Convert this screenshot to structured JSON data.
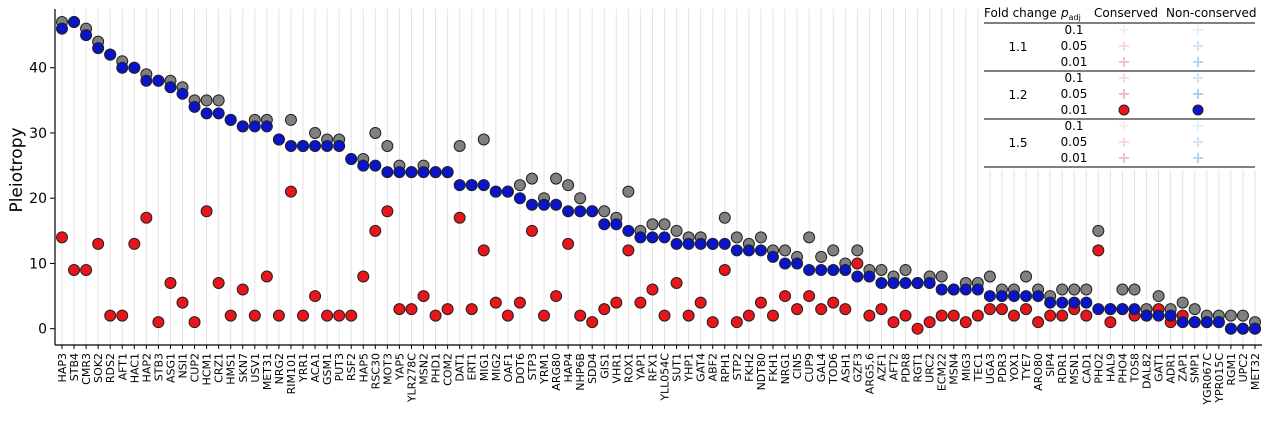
{
  "chart_data": {
    "type": "scatter",
    "y_label": "Pleiotropy",
    "ylim": [
      -2.5,
      49
    ],
    "yticks": [
      0,
      10,
      20,
      30,
      40
    ],
    "grid": true,
    "categories": [
      "HAP3",
      "STB4",
      "CMR3",
      "SOK2",
      "RDS2",
      "AFT1",
      "HAC1",
      "HAP2",
      "STB3",
      "ASG1",
      "NSI1",
      "CUP2",
      "HCM1",
      "CRZ1",
      "HMS1",
      "SKN7",
      "USV1",
      "MET31",
      "NRG2",
      "RIM101",
      "YRR1",
      "ACA1",
      "GSM1",
      "PUT3",
      "RSF2",
      "HAP5",
      "RSC30",
      "MOT3",
      "YAP5",
      "YLR278C",
      "MSN2",
      "PHD1",
      "COM2",
      "DAT1",
      "ERT1",
      "MIG1",
      "MIG2",
      "OAF1",
      "DOT6",
      "STP3",
      "YRM1",
      "ARG80",
      "HAP4",
      "NHP6B",
      "SDD4",
      "GIS1",
      "VHR1",
      "ROX1",
      "YAP1",
      "RFX1",
      "YLL054C",
      "SUT1",
      "YHP1",
      "GAT4",
      "ABF2",
      "RPH1",
      "STP2",
      "FKH2",
      "NDT80",
      "FKH1",
      "NRG1",
      "CIN5",
      "CUP9",
      "GAL4",
      "TOD6",
      "ASH1",
      "GZF3",
      "ARG5,6",
      "AZF1",
      "AFT2",
      "PDR8",
      "RGT1",
      "URC2",
      "ECM22",
      "MSN4",
      "MIG3",
      "TEC1",
      "UGA3",
      "PDR3",
      "YOX1",
      "TYE7",
      "ARO80",
      "SIP4",
      "RDR1",
      "MSN1",
      "CAD1",
      "PHO2",
      "HAL9",
      "PHO4",
      "TOS8",
      "DAL82",
      "GAT1",
      "ADR1",
      "ZAP1",
      "SMP1",
      "YGR067C",
      "YPR015C",
      "RGM1",
      "UPC2",
      "MET32"
    ],
    "series": [
      {
        "color": "#808080",
        "values": [
          47,
          47,
          46,
          44,
          42,
          41,
          40,
          39,
          38,
          38,
          37,
          35,
          35,
          35,
          32,
          31,
          32,
          32,
          29,
          32,
          28,
          30,
          29,
          29,
          26,
          26,
          30,
          28,
          25,
          24,
          25,
          24,
          24,
          28,
          22,
          29,
          21,
          21,
          22,
          23,
          20,
          23,
          22,
          20,
          18,
          18,
          17,
          21,
          15,
          16,
          16,
          15,
          14,
          14,
          13,
          17,
          14,
          13,
          14,
          12,
          12,
          11,
          14,
          11,
          12,
          10,
          12,
          9,
          9,
          8,
          9,
          7,
          8,
          8,
          6,
          7,
          7,
          8,
          6,
          6,
          8,
          6,
          5,
          6,
          6,
          6,
          15,
          3,
          6,
          6,
          3,
          5,
          3,
          4,
          3,
          2,
          2,
          2,
          2,
          1
        ]
      },
      {
        "color": "#e8151b",
        "values": [
          14,
          9,
          9,
          13,
          2,
          2,
          13,
          17,
          1,
          7,
          4,
          1,
          18,
          7,
          2,
          6,
          2,
          8,
          2,
          21,
          2,
          5,
          2,
          2,
          2,
          8,
          15,
          18,
          3,
          3,
          5,
          2,
          3,
          17,
          3,
          12,
          4,
          2,
          4,
          15,
          2,
          5,
          13,
          2,
          1,
          3,
          4,
          12,
          4,
          6,
          2,
          7,
          2,
          4,
          1,
          9,
          1,
          2,
          4,
          2,
          5,
          3,
          5,
          3,
          4,
          3,
          10,
          2,
          3,
          1,
          2,
          0,
          1,
          2,
          2,
          1,
          2,
          3,
          3,
          2,
          3,
          1,
          2,
          2,
          3,
          2,
          12,
          1,
          3,
          2,
          2,
          3,
          1,
          2,
          1,
          1,
          1,
          0,
          0,
          0
        ]
      },
      {
        "color": "#0a14c8",
        "values": [
          46,
          47,
          45,
          43,
          42,
          40,
          40,
          38,
          38,
          37,
          36,
          34,
          33,
          33,
          32,
          31,
          31,
          31,
          29,
          28,
          28,
          28,
          28,
          28,
          26,
          25,
          25,
          24,
          24,
          24,
          24,
          24,
          24,
          22,
          22,
          22,
          21,
          21,
          20,
          19,
          19,
          19,
          18,
          18,
          18,
          16,
          16,
          15,
          14,
          14,
          14,
          13,
          13,
          13,
          13,
          13,
          12,
          12,
          12,
          11,
          10,
          10,
          9,
          9,
          9,
          9,
          8,
          8,
          7,
          7,
          7,
          7,
          7,
          6,
          6,
          6,
          6,
          5,
          5,
          5,
          5,
          5,
          4,
          4,
          4,
          4,
          3,
          3,
          3,
          3,
          2,
          2,
          2,
          1,
          1,
          1,
          1,
          0,
          0,
          0
        ]
      }
    ]
  },
  "legend": {
    "headers": [
      "Fold change",
      "p",
      "adj",
      "Conserved",
      "Non-conserved"
    ],
    "fold_changes": [
      1.1,
      1.2,
      1.5
    ],
    "p_values": [
      0.1,
      0.05,
      0.01
    ]
  }
}
